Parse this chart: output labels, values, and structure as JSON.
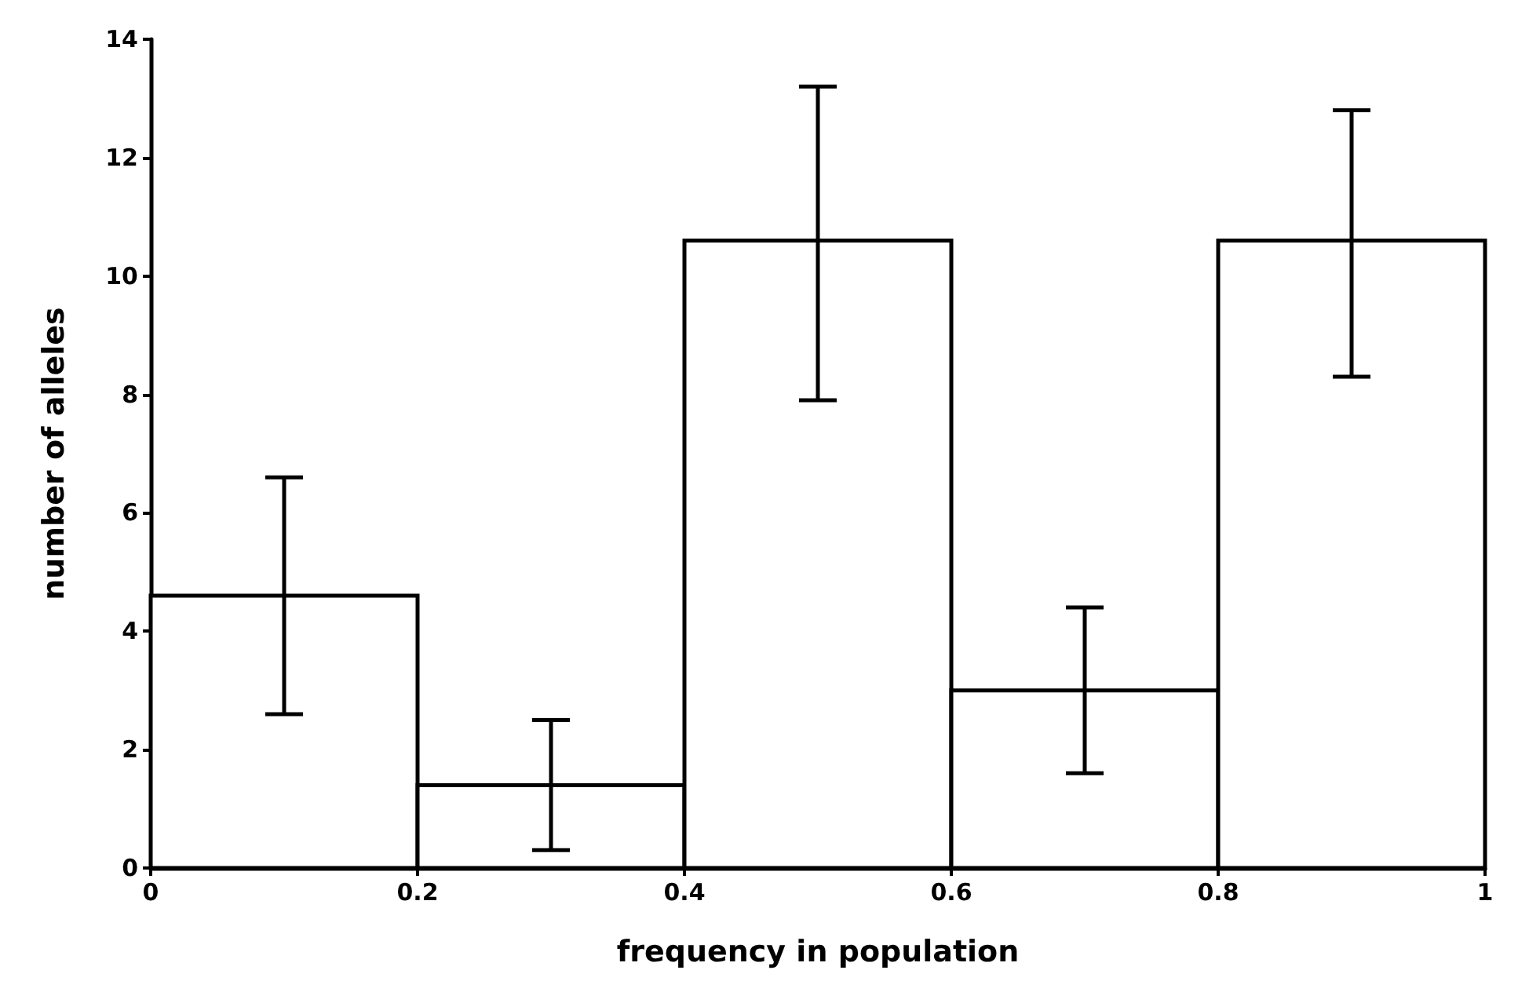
{
  "chart_data": {
    "type": "histogram",
    "xlabel": "frequency in population",
    "ylabel": "number of alleles",
    "bins": [
      0,
      0.2,
      0.4,
      0.6,
      0.8,
      1
    ],
    "values": [
      4.6,
      1.4,
      10.6,
      3.0,
      10.6
    ],
    "errors": [
      [
        2.6,
        6.6
      ],
      [
        0.3,
        2.5
      ],
      [
        7.9,
        13.2
      ],
      [
        1.6,
        4.4
      ],
      [
        8.3,
        12.8
      ]
    ],
    "color": "#ffffff",
    "xlim": [
      0,
      1
    ],
    "xticks": [
      0,
      0.2,
      0.4,
      0.6,
      0.8,
      1
    ],
    "ylim": [
      0,
      14
    ],
    "yticks": [
      0,
      2,
      4,
      6,
      8,
      10,
      12,
      14
    ]
  }
}
